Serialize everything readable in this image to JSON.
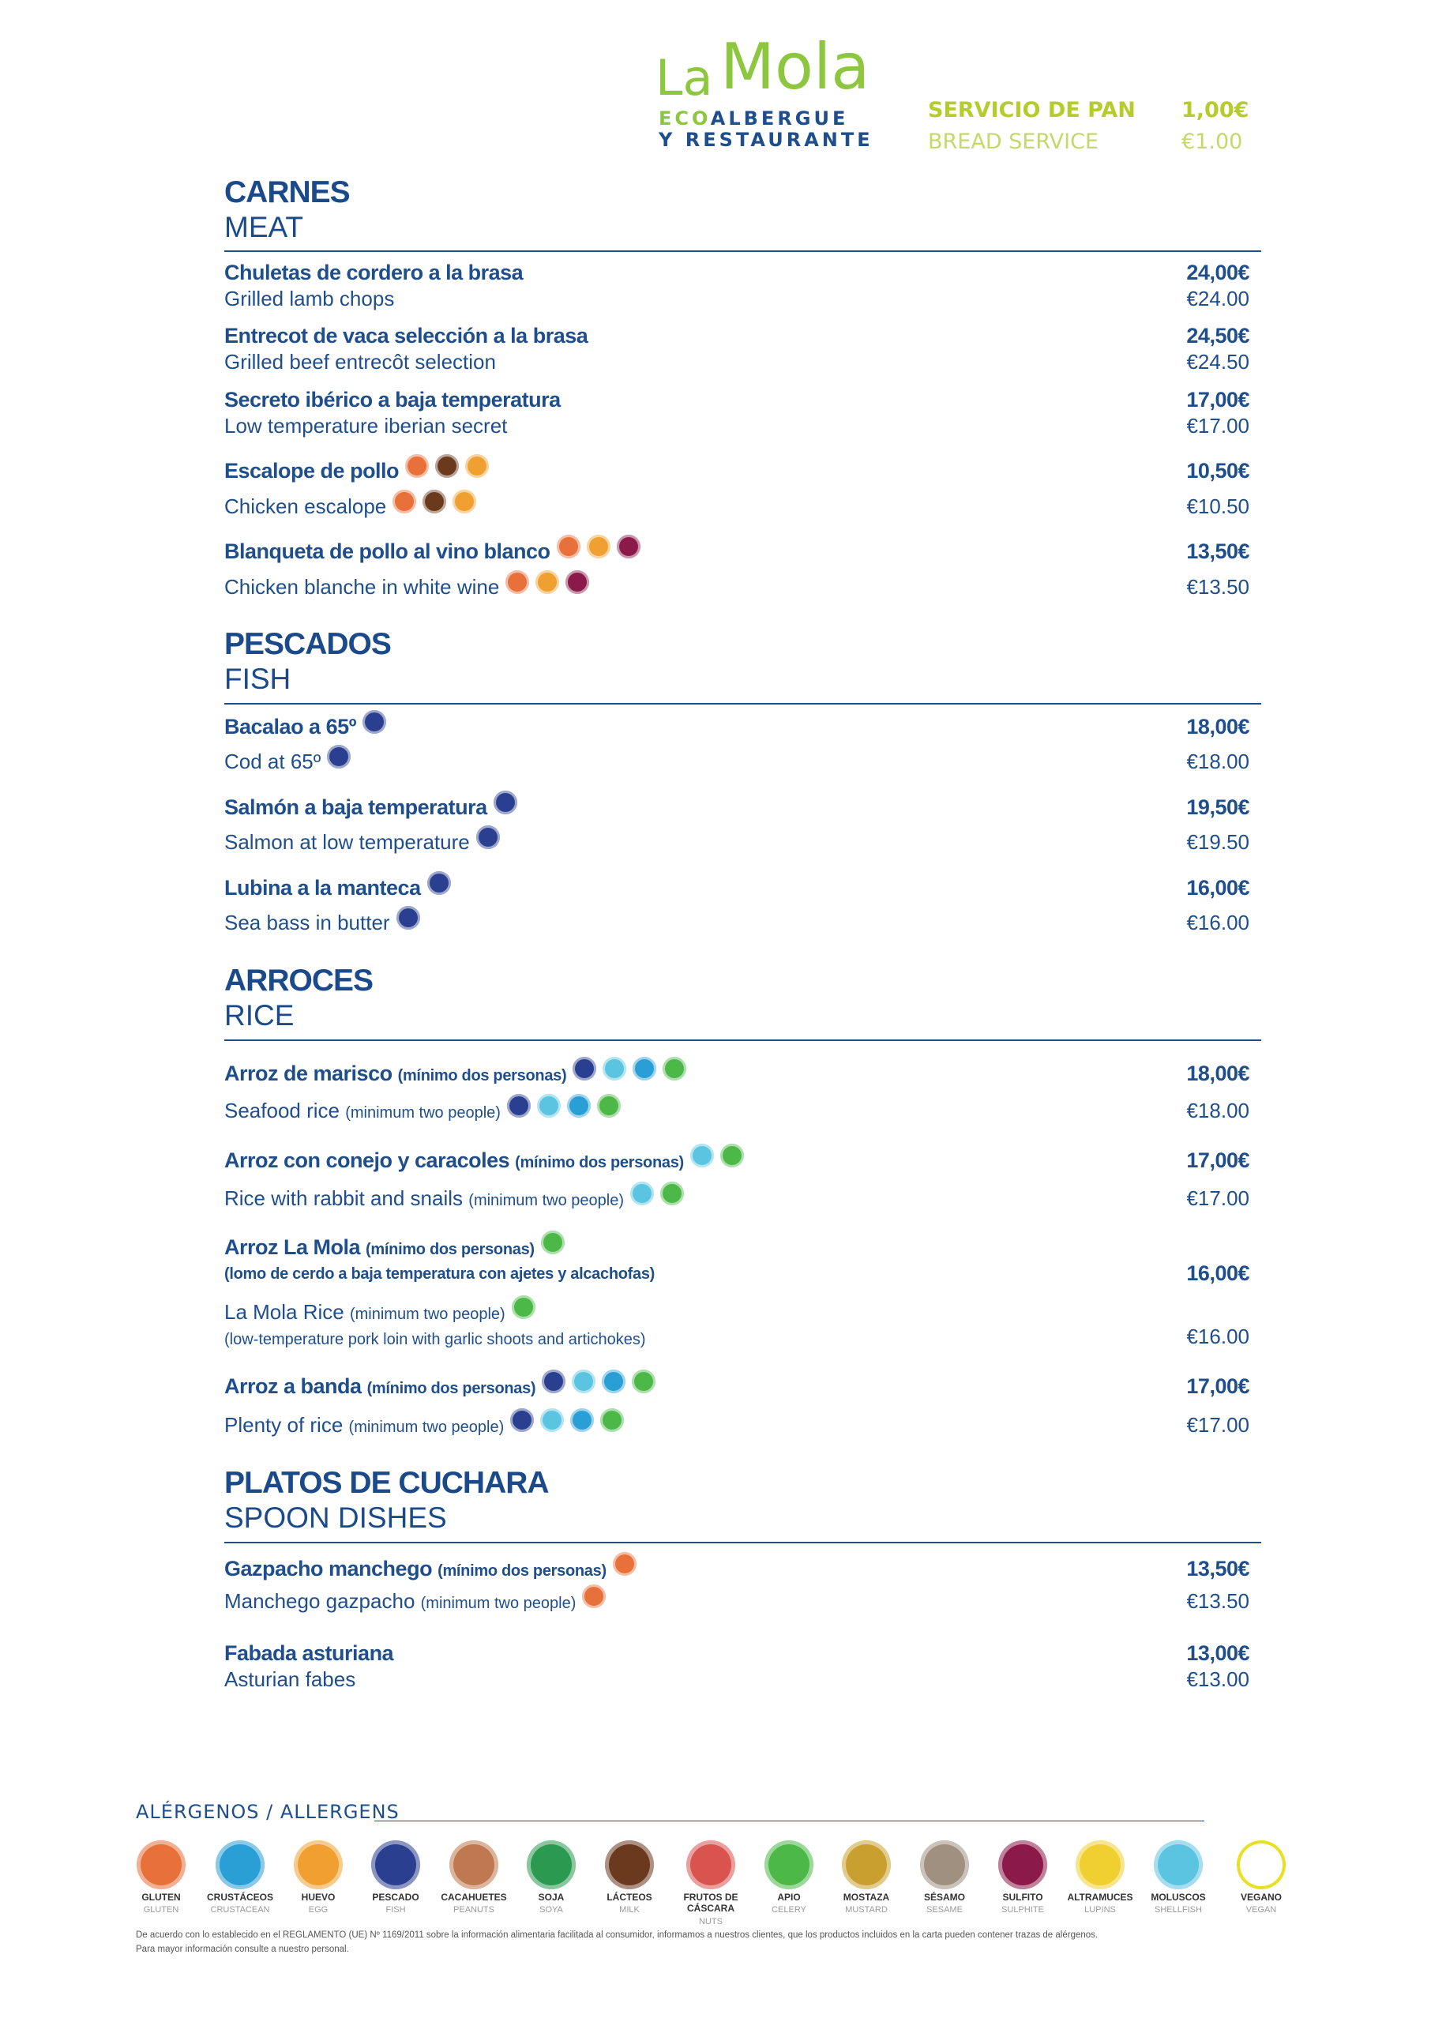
{
  "header": {
    "logo_main_1": "La",
    "logo_main_2": "Mola",
    "logo_eco": "ECO",
    "logo_line1": "ALBERGUE",
    "logo_line2": "Y RESTAURANTE",
    "bread_service_es": "SERVICIO DE PAN",
    "bread_price_es": "1,00€",
    "bread_service_en": "BREAD SERVICE",
    "bread_price_en": "€1.00"
  },
  "sections": [
    {
      "title_es": "CARNES",
      "title_en": "MEAT",
      "items": [
        {
          "name_es": "Chuletas de cordero a la brasa",
          "name_en": "Grilled lamb chops",
          "price_es": "24,00€",
          "price_en": "€24.00"
        },
        {
          "name_es": "Entrecot de vaca selección a la brasa",
          "name_en": "Grilled beef entrecôt selection",
          "price_es": "24,50€",
          "price_en": "€24.50"
        },
        {
          "name_es": "Secreto ibérico a baja temperatura",
          "name_en": "Low temperature iberian secret",
          "price_es": "17,00€",
          "price_en": "€17.00"
        },
        {
          "name_es": "Escalope de pollo",
          "name_en": "Chicken escalope",
          "price_es": "10,50€",
          "price_en": "€10.50"
        },
        {
          "name_es": "Blanqueta de pollo al vino blanco",
          "name_en": "Chicken blanche in white wine",
          "price_es": "13,50€",
          "price_en": "€13.50"
        }
      ]
    },
    {
      "title_es": "PESCADOS",
      "title_en": "FISH",
      "items": [
        {
          "name_es": "Bacalao a 65º",
          "name_en": "Cod at 65º",
          "price_es": "18,00€",
          "price_en": "€18.00"
        },
        {
          "name_es": "Salmón a baja temperatura",
          "name_en": "Salmon at low temperature",
          "price_es": "19,50€",
          "price_en": "€19.50"
        },
        {
          "name_es": "Lubina a la manteca",
          "name_en": "Sea bass in butter",
          "price_es": "16,00€",
          "price_en": "€16.00"
        }
      ]
    },
    {
      "title_es": "ARROCES",
      "title_en": "RICE",
      "items": [
        {
          "name_es": "Arroz de marisco",
          "note_es": "(mínimo dos personas)",
          "name_en": "Seafood rice",
          "note_en": "(minimum two people)",
          "price_es": "18,00€",
          "price_en": "€18.00"
        },
        {
          "name_es": "Arroz con conejo y caracoles",
          "note_es": "(mínimo dos personas)",
          "name_en": "Rice with rabbit and snails",
          "note_en": "(minimum two people)",
          "price_es": "17,00€",
          "price_en": "€17.00"
        },
        {
          "name_es": "Arroz La Mola",
          "note_es": "(mínimo dos personas)",
          "detail_es": "(lomo de cerdo a baja temperatura con ajetes y alcachofas)",
          "name_en": "La Mola Rice",
          "note_en": "(minimum two people)",
          "detail_en": "(low-temperature pork loin with garlic shoots and artichokes)",
          "price_es": "16,00€",
          "price_en": "€16.00"
        },
        {
          "name_es": "Arroz a banda",
          "note_es": "(mínimo dos personas)",
          "name_en": "Plenty of rice",
          "note_en": "(minimum two people)",
          "price_es": "17,00€",
          "price_en": "€17.00"
        }
      ]
    },
    {
      "title_es": "PLATOS DE CUCHARA",
      "title_en": "SPOON DISHES",
      "items": [
        {
          "name_es": "Gazpacho manchego",
          "note_es": "(mínimo dos personas)",
          "name_en": "Manchego gazpacho",
          "note_en": "(minimum two people)",
          "price_es": "13,50€",
          "price_en": "€13.50"
        },
        {
          "name_es": "Fabada asturiana",
          "name_en": "Asturian fabes",
          "price_es": "13,00€",
          "price_en": "€13.00"
        }
      ]
    }
  ],
  "allergens": {
    "title": "ALÉRGENOS / ALLERGENS",
    "items": [
      {
        "es": "GLUTEN",
        "en": "GLUTEN"
      },
      {
        "es": "CRUSTÁCEOS",
        "en": "CRUSTACEAN"
      },
      {
        "es": "HUEVO",
        "en": "EGG"
      },
      {
        "es": "PESCADO",
        "en": "FISH"
      },
      {
        "es": "CACAHUETES",
        "en": "PEANUTS"
      },
      {
        "es": "SOJA",
        "en": "SOYA"
      },
      {
        "es": "LÁCTEOS",
        "en": "MILK"
      },
      {
        "es": "FRUTOS DE CÁSCARA",
        "en": "NUTS"
      },
      {
        "es": "APIO",
        "en": "CELERY"
      },
      {
        "es": "MOSTAZA",
        "en": "MUSTARD"
      },
      {
        "es": "SÉSAMO",
        "en": "SESAME"
      },
      {
        "es": "SULFITO",
        "en": "SULPHITE"
      },
      {
        "es": "ALTRAMUCES",
        "en": "LUPINS"
      },
      {
        "es": "MOLUSCOS",
        "en": "SHELLFISH"
      },
      {
        "es": "VEGANO",
        "en": "VEGAN"
      }
    ],
    "disclaimer_1": "De acuerdo con lo establecido en el REGLAMENTO (UE) Nº 1169/2011 sobre la información alimentaria facilitada al consumidor, informamos a nuestros clientes, que los productos incluidos en la carta pueden contener trazas de alérgenos.",
    "disclaimer_2": "Para mayor información consulte a nuestro personal."
  }
}
